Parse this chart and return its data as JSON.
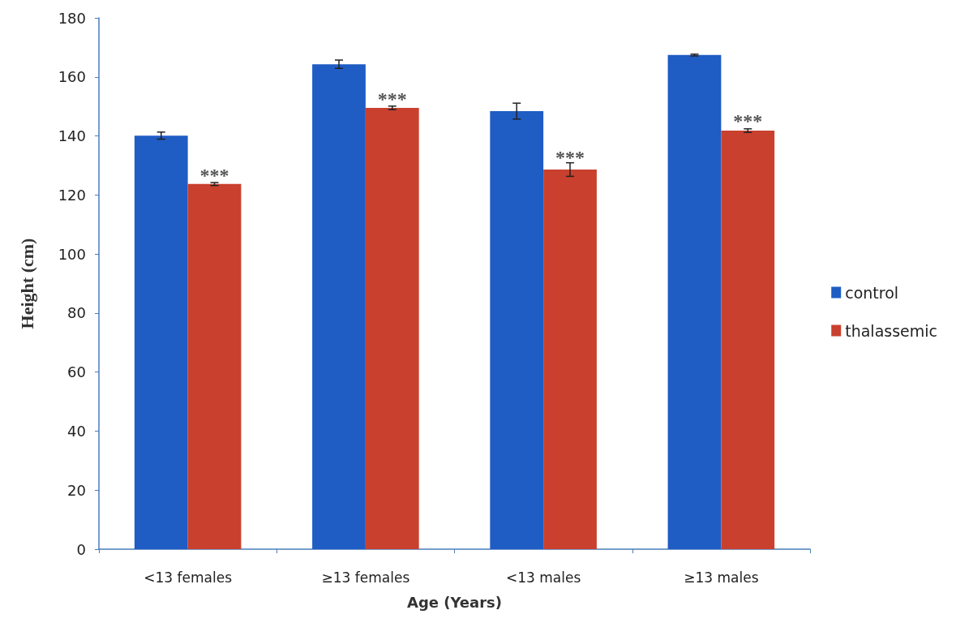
{
  "chart_data": {
    "type": "bar",
    "xlabel": "Age (Years)",
    "ylabel": "Height (cm)",
    "categories": [
      "<13 females",
      "≥13 females",
      "<13 males",
      "≥13 males"
    ],
    "series": [
      {
        "name": "control",
        "color": "#1f5cc4",
        "values": [
          140.1,
          164.3,
          148.4,
          167.4
        ],
        "errors": [
          1.2,
          1.4,
          2.7,
          0.3
        ]
      },
      {
        "name": "thalassemic",
        "color": "#c9402e",
        "values": [
          123.7,
          149.5,
          128.6,
          141.8
        ],
        "errors": [
          0.5,
          0.6,
          2.3,
          0.6
        ]
      }
    ],
    "annotations": [
      {
        "text": "***",
        "x": "<13 females",
        "y": 125
      },
      {
        "text": "***",
        "x": "≥13 females",
        "y": 151
      },
      {
        "text": "***",
        "x": "<13 males",
        "y": 131
      },
      {
        "text": "***",
        "x": "≥13 males",
        "y": 143.5
      }
    ],
    "ylim": [
      0,
      180
    ],
    "yticks": [
      0,
      20,
      40,
      60,
      80,
      100,
      120,
      140,
      160,
      180
    ],
    "grid": false,
    "legend": "right"
  }
}
